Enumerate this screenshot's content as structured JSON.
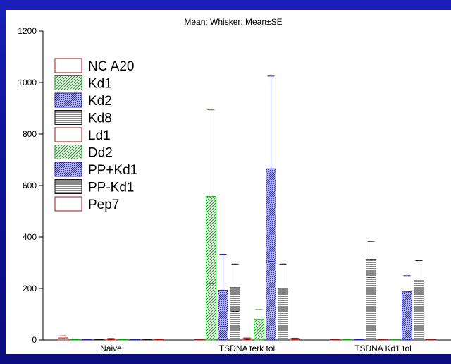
{
  "chart_data": {
    "type": "bar",
    "title": "Mean; Whisker: Mean±SE",
    "xlabel": "",
    "ylabel": "",
    "ylim": [
      0,
      1200
    ],
    "yticks": [
      0,
      200,
      400,
      600,
      800,
      1000,
      1200
    ],
    "categories": [
      "Naive",
      "TSDNA terk tol",
      "TSDNA Kd1 tol"
    ],
    "legend_position": "top-left",
    "series": [
      {
        "name": "NC A20",
        "style": "open",
        "color": "#a01010",
        "values": [
          8,
          0,
          2
        ],
        "se": [
          8,
          0,
          1
        ]
      },
      {
        "name": "Kd1",
        "style": "diag",
        "color": "#119911",
        "values": [
          3,
          557,
          3
        ],
        "se": [
          1,
          337,
          1
        ]
      },
      {
        "name": "Kd2",
        "style": "cross",
        "color": "#1a1aa0",
        "values": [
          2,
          193,
          3
        ],
        "se": [
          1,
          140,
          1
        ]
      },
      {
        "name": "Kd8",
        "style": "horiz",
        "color": "#111111",
        "values": [
          3,
          203,
          313
        ],
        "se": [
          1,
          92,
          70
        ]
      },
      {
        "name": "Ld1",
        "style": "open",
        "color": "#a01010",
        "values": [
          4,
          5,
          2
        ],
        "se": [
          2,
          3,
          1
        ]
      },
      {
        "name": "Dd2",
        "style": "diag",
        "color": "#119911",
        "values": [
          3,
          80,
          1
        ],
        "se": [
          1,
          38,
          1
        ]
      },
      {
        "name": "PP+Kd1",
        "style": "cross",
        "color": "#1a1aa0",
        "values": [
          1,
          665,
          187
        ],
        "se": [
          1,
          360,
          63
        ]
      },
      {
        "name": "PP-Kd1",
        "style": "horiz",
        "color": "#111111",
        "values": [
          3,
          200,
          230
        ],
        "se": [
          1,
          95,
          78
        ]
      },
      {
        "name": "Pep7",
        "style": "open",
        "color": "#a01010",
        "values": [
          3,
          5,
          1
        ],
        "se": [
          1,
          2,
          1
        ]
      }
    ]
  }
}
